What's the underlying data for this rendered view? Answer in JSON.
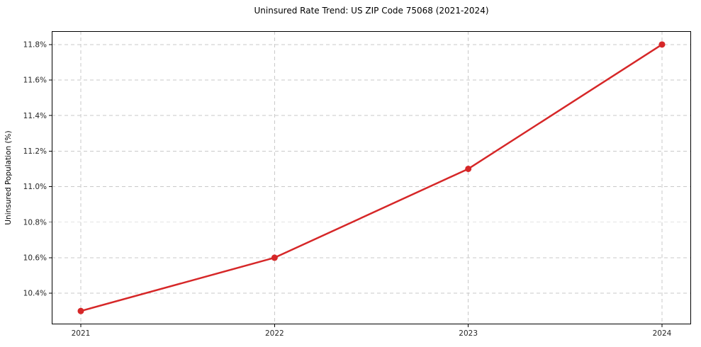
{
  "chart_data": {
    "type": "line",
    "title": "Uninsured Rate Trend: US ZIP Code 75068 (2021-2024)",
    "xlabel": "",
    "ylabel": "Uninsured Population (%)",
    "x": [
      2021,
      2022,
      2023,
      2024
    ],
    "values": [
      10.3,
      10.6,
      11.1,
      11.8
    ],
    "x_tick_labels": [
      "2021",
      "2022",
      "2023",
      "2024"
    ],
    "y_ticks": [
      10.4,
      10.6,
      10.8,
      11.0,
      11.2,
      11.4,
      11.6,
      11.8
    ],
    "y_tick_suffix": "%",
    "y_tick_decimals": 1,
    "xlim": [
      2020.85,
      2024.15
    ],
    "ylim": [
      10.225,
      11.875
    ],
    "grid": true,
    "grid_style": "dashed",
    "legend_position": "none",
    "line_color": "#d62728",
    "marker_color": "#d62728",
    "grid_color": "#c9c9c9",
    "axis_color": "#000000",
    "background_color": "#ffffff"
  }
}
